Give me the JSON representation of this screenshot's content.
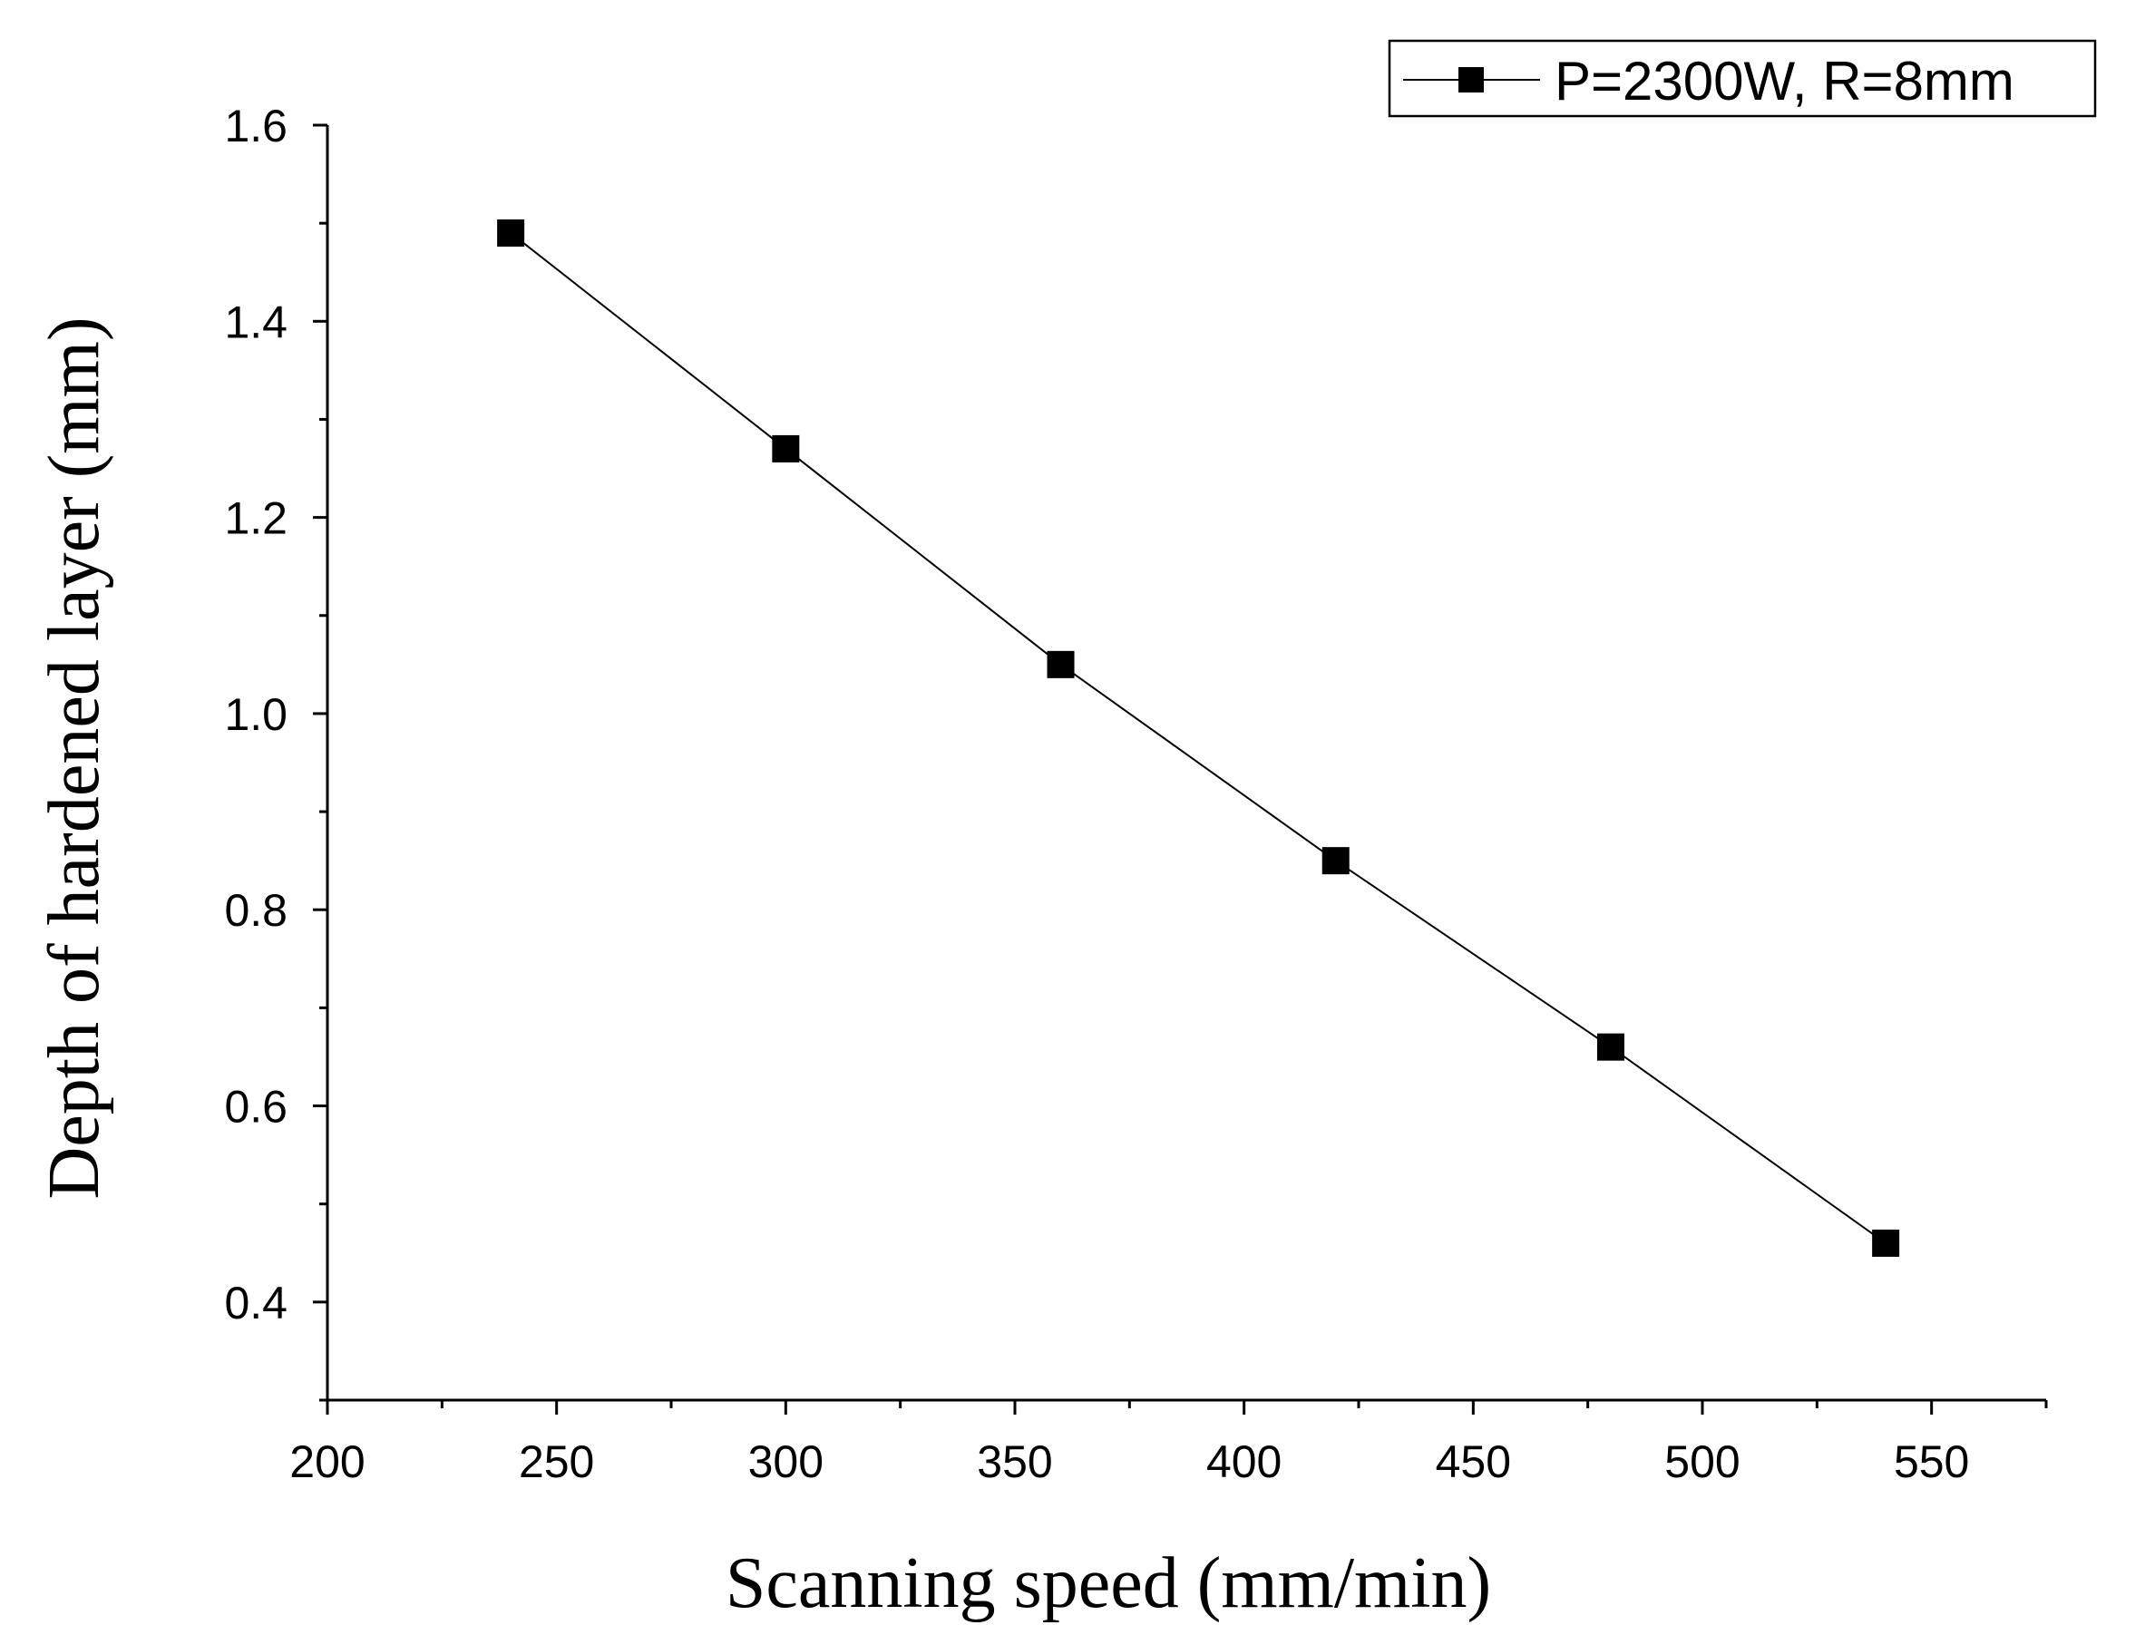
{
  "chart_data": {
    "type": "line",
    "title": "",
    "xlabel": "Scanning speed (mm/min)",
    "ylabel": "Depth of hardened layer (mm)",
    "xlim": [
      200,
      575
    ],
    "ylim": [
      0.3,
      1.6
    ],
    "x_ticks": [
      200,
      250,
      300,
      350,
      400,
      450,
      500,
      550
    ],
    "x_tick_labels": [
      "200",
      "250",
      "300",
      "350",
      "400",
      "450",
      "500",
      "550"
    ],
    "y_ticks": [
      0.4,
      0.6,
      0.8,
      1.0,
      1.2,
      1.4,
      1.6
    ],
    "y_tick_labels": [
      "0.4",
      "0.6",
      "0.8",
      "1.0",
      "1.2",
      "1.4",
      "1.6"
    ],
    "grid": false,
    "legend_position": "top-right",
    "series": [
      {
        "name": "P=2300W, R=8mm",
        "marker": "square",
        "color": "#000000",
        "x": [
          240,
          300,
          360,
          420,
          480,
          540
        ],
        "values": [
          1.49,
          1.27,
          1.05,
          0.85,
          0.66,
          0.46
        ]
      }
    ]
  }
}
